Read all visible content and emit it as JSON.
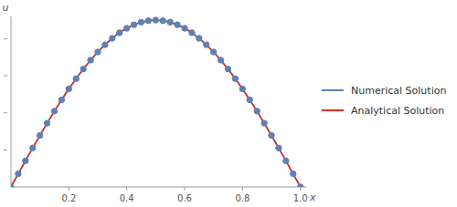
{
  "chart_data": {
    "type": "line",
    "xlabel": "x",
    "ylabel": "u",
    "x": [
      0,
      0.025,
      0.05,
      0.075,
      0.1,
      0.125,
      0.15,
      0.175,
      0.2,
      0.225,
      0.25,
      0.275,
      0.3,
      0.325,
      0.35,
      0.375,
      0.4,
      0.425,
      0.45,
      0.475,
      0.5,
      0.525,
      0.55,
      0.575,
      0.6,
      0.625,
      0.65,
      0.675,
      0.7,
      0.725,
      0.75,
      0.775,
      0.8,
      0.825,
      0.85,
      0.875,
      0.9,
      0.925,
      0.95,
      0.975,
      1
    ],
    "series": [
      {
        "name": "Numerical Solution",
        "color": "#5e81b5",
        "marker": "circle",
        "line_style": "solid",
        "values": [
          0,
          0.071,
          0.141,
          0.21,
          0.278,
          0.344,
          0.409,
          0.47,
          0.529,
          0.584,
          0.636,
          0.684,
          0.728,
          0.767,
          0.802,
          0.832,
          0.856,
          0.875,
          0.889,
          0.897,
          0.9,
          0.897,
          0.889,
          0.875,
          0.856,
          0.832,
          0.802,
          0.767,
          0.728,
          0.684,
          0.636,
          0.584,
          0.529,
          0.47,
          0.409,
          0.344,
          0.278,
          0.21,
          0.141,
          0.071,
          0
        ]
      },
      {
        "name": "Analytical Solution",
        "color": "#e0301e",
        "line_style": "solid",
        "values": [
          0,
          0.071,
          0.141,
          0.21,
          0.278,
          0.344,
          0.409,
          0.47,
          0.529,
          0.584,
          0.636,
          0.684,
          0.728,
          0.767,
          0.802,
          0.832,
          0.856,
          0.875,
          0.889,
          0.897,
          0.9,
          0.897,
          0.889,
          0.875,
          0.856,
          0.832,
          0.802,
          0.767,
          0.728,
          0.684,
          0.636,
          0.584,
          0.529,
          0.47,
          0.409,
          0.344,
          0.278,
          0.21,
          0.141,
          0.071,
          0
        ]
      }
    ],
    "xlim": [
      0,
      1.02
    ],
    "xticks": [
      0.2,
      0.4,
      0.6,
      0.8,
      {
        "value": 1,
        "label": "1.0"
      }
    ],
    "ylim": [
      0,
      0.92
    ],
    "yticks": [
      0.2,
      0.4,
      0.6,
      0.8
    ],
    "tick_labels": "x",
    "grid": false,
    "legend": "right"
  }
}
